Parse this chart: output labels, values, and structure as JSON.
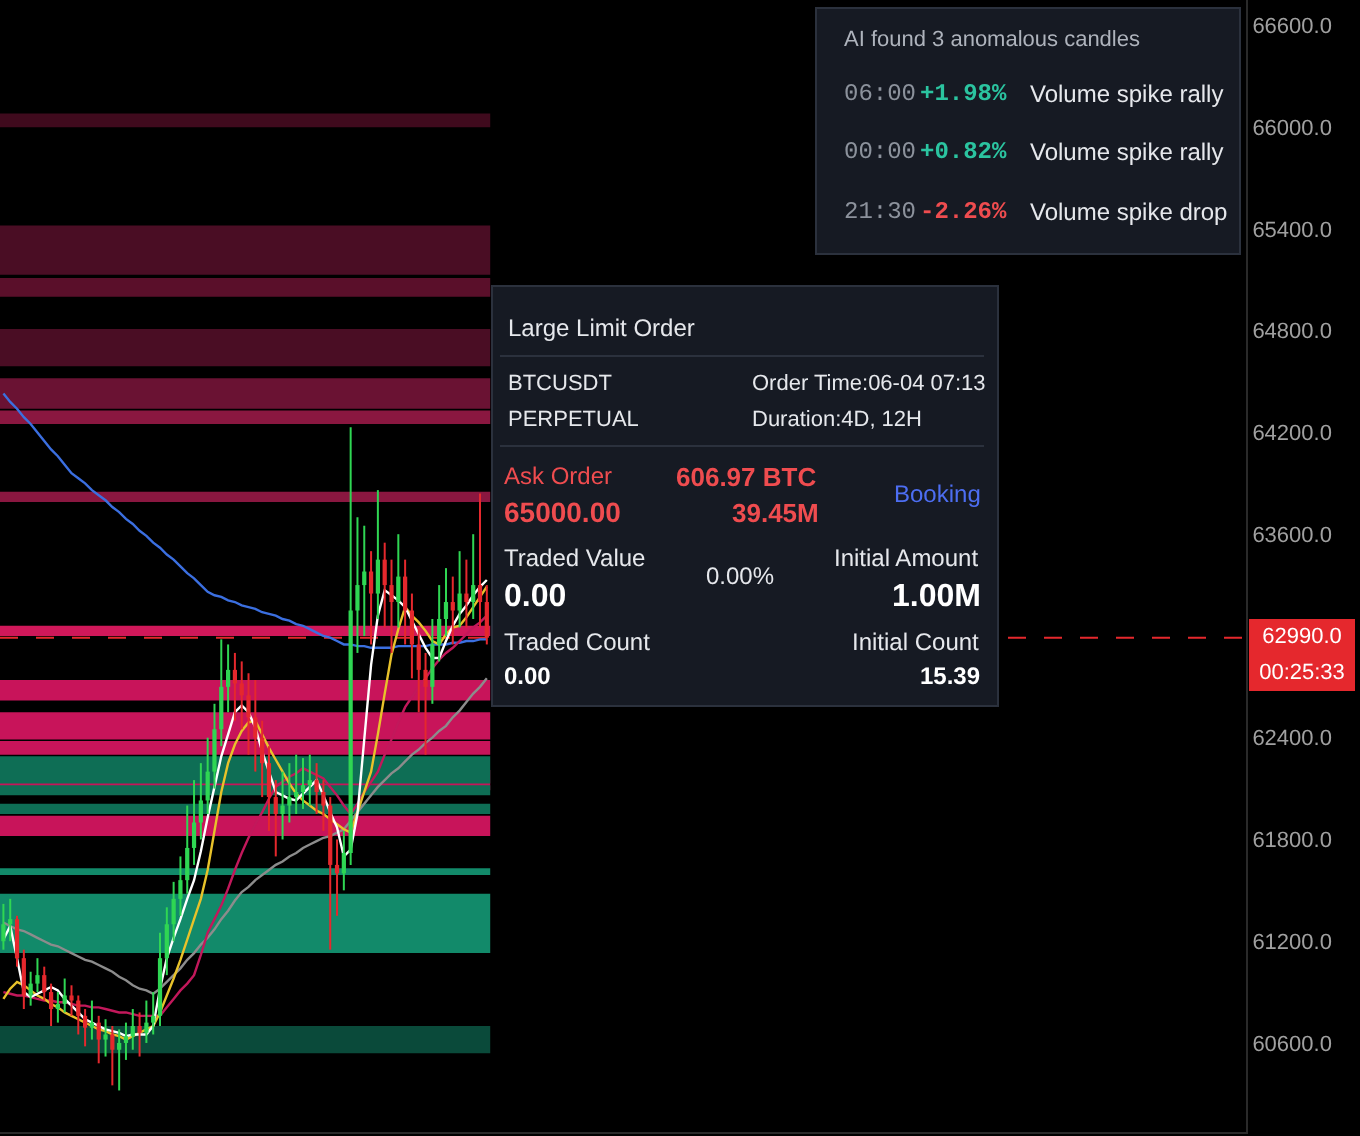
{
  "chart_data": {
    "type": "candlestick",
    "categories": [
      null,
      null,
      null,
      null,
      null,
      null,
      null,
      null,
      null,
      null,
      null,
      null,
      null,
      null,
      null,
      null,
      null,
      null,
      null,
      null,
      null,
      null,
      null,
      null,
      null,
      null,
      null,
      null,
      null,
      null,
      null,
      null,
      null,
      null,
      null,
      null,
      null,
      null,
      null,
      null,
      null,
      null,
      null,
      null,
      null,
      null,
      null,
      null,
      null,
      null,
      null,
      null,
      null,
      null,
      null,
      null,
      null,
      null,
      null,
      null,
      null,
      null,
      null,
      null,
      null,
      null,
      null,
      null,
      null,
      null,
      null,
      null,
      null,
      null,
      null,
      null,
      null,
      null,
      null,
      null,
      null,
      null,
      null,
      null,
      null,
      null,
      null,
      null,
      null,
      null,
      null,
      null,
      null,
      null,
      null,
      null,
      null,
      null,
      null,
      null,
      null,
      null,
      null,
      null,
      null,
      null,
      null,
      null,
      null,
      null,
      null,
      null,
      null,
      null,
      null,
      null,
      null,
      null,
      null,
      null,
      null,
      null,
      null,
      null,
      null,
      null,
      null,
      null,
      null,
      null,
      null,
      null,
      null,
      null,
      null,
      null,
      null,
      null,
      null,
      null,
      null,
      null,
      null,
      null,
      null,
      null,
      null,
      null,
      null,
      null,
      null,
      null,
      null,
      null,
      null,
      null,
      null,
      null,
      null,
      null,
      null,
      null,
      null,
      null,
      null,
      null,
      null,
      null,
      null,
      null,
      null,
      null,
      null,
      null,
      null,
      null,
      null,
      null,
      null,
      null,
      null,
      null,
      null
    ],
    "ohlc": [
      [
        61200,
        61420,
        61150,
        61300
      ],
      [
        61300,
        61450,
        61200,
        61330
      ],
      [
        61330,
        61350,
        61050,
        61100
      ],
      [
        61100,
        61150,
        60800,
        60880
      ],
      [
        60880,
        61020,
        60820,
        60950
      ],
      [
        60950,
        61100,
        60900,
        61000
      ],
      [
        61000,
        61050,
        60850,
        60900
      ],
      [
        60900,
        60950,
        60700,
        60800
      ],
      [
        60800,
        60900,
        60720,
        60830
      ],
      [
        60830,
        60980,
        60780,
        60880
      ],
      [
        60880,
        60940,
        60760,
        60850
      ],
      [
        60850,
        60880,
        60650,
        60760
      ],
      [
        60760,
        60800,
        60580,
        60690
      ],
      [
        60690,
        60850,
        60620,
        60720
      ],
      [
        60720,
        60760,
        60480,
        60620
      ],
      [
        60620,
        60740,
        60520,
        60650
      ],
      [
        60650,
        60700,
        60350,
        60560
      ],
      [
        60560,
        60680,
        60320,
        60600
      ],
      [
        60600,
        60720,
        60500,
        60640
      ],
      [
        60640,
        60800,
        60560,
        60700
      ],
      [
        60700,
        60780,
        60520,
        60660
      ],
      [
        60660,
        60850,
        60600,
        60720
      ],
      [
        60720,
        60900,
        60650,
        60760
      ],
      [
        60760,
        61250,
        60700,
        61100
      ],
      [
        61100,
        61400,
        61000,
        61300
      ],
      [
        61300,
        61550,
        61200,
        61450
      ],
      [
        61450,
        61700,
        61350,
        61560
      ],
      [
        61560,
        62000,
        61480,
        61750
      ],
      [
        61750,
        62150,
        61650,
        61900
      ],
      [
        61900,
        62250,
        61800,
        62030
      ],
      [
        62030,
        62400,
        61950,
        62200
      ],
      [
        62200,
        62600,
        62100,
        62450
      ],
      [
        62450,
        62980,
        62350,
        62700
      ],
      [
        62700,
        62950,
        62550,
        62800
      ],
      [
        62800,
        62900,
        62500,
        62720
      ],
      [
        62720,
        62850,
        62450,
        62650
      ],
      [
        62650,
        62780,
        62300,
        62520
      ],
      [
        62520,
        62740,
        62200,
        62400
      ],
      [
        62400,
        62500,
        62050,
        62250
      ],
      [
        62250,
        62350,
        61850,
        62050
      ],
      [
        62050,
        62150,
        61700,
        61950
      ],
      [
        61950,
        62200,
        61800,
        62000
      ],
      [
        62000,
        62250,
        61900,
        62050
      ],
      [
        62050,
        62300,
        61950,
        62080
      ],
      [
        62080,
        62280,
        61980,
        62120
      ],
      [
        62120,
        62300,
        62000,
        62150
      ],
      [
        62150,
        62250,
        61950,
        62080
      ],
      [
        62080,
        62150,
        61850,
        62000
      ],
      [
        62000,
        62050,
        61150,
        61650
      ],
      [
        61650,
        61800,
        61350,
        61600
      ],
      [
        61600,
        61850,
        61500,
        61720
      ],
      [
        61720,
        64230,
        61650,
        63150
      ],
      [
        63150,
        63700,
        62900,
        63300
      ],
      [
        63300,
        63650,
        63000,
        63380
      ],
      [
        63380,
        63500,
        62950,
        63250
      ],
      [
        63250,
        63860,
        63100,
        63450
      ],
      [
        63450,
        63550,
        63050,
        63300
      ],
      [
        63300,
        63450,
        62900,
        63200
      ],
      [
        63200,
        63600,
        63050,
        63350
      ],
      [
        63350,
        63450,
        62950,
        63150
      ],
      [
        63150,
        63250,
        62750,
        62950
      ],
      [
        62950,
        63050,
        62550,
        62800
      ],
      [
        62800,
        62900,
        62300,
        62700
      ],
      [
        62700,
        63100,
        62600,
        62950
      ],
      [
        62950,
        63300,
        62850,
        63100
      ],
      [
        63100,
        63400,
        63000,
        63200
      ],
      [
        63200,
        63350,
        62950,
        63150
      ],
      [
        63150,
        63500,
        63050,
        63250
      ],
      [
        63250,
        63450,
        63050,
        63200
      ],
      [
        63200,
        63600,
        63100,
        63300
      ],
      [
        63300,
        63840,
        63050,
        63200
      ],
      [
        63200,
        63300,
        62950,
        62990
      ],
      null,
      null,
      null,
      null,
      null,
      null,
      null,
      null,
      null,
      null,
      null,
      null,
      null,
      null,
      null,
      null,
      null,
      null,
      null,
      null,
      null,
      null,
      null,
      null,
      null,
      null,
      null,
      null,
      null,
      null,
      null,
      null,
      null,
      null,
      null,
      null,
      null,
      null,
      null,
      null,
      null,
      null,
      null,
      null,
      null,
      null,
      null,
      null,
      null,
      null,
      null,
      null,
      null,
      null,
      null,
      null,
      null,
      null,
      null,
      null,
      null,
      null,
      null,
      null,
      null,
      null,
      null,
      null,
      null,
      null,
      null,
      null,
      null,
      null,
      null,
      null,
      null,
      null,
      null,
      null,
      null,
      null,
      null,
      null,
      null,
      null,
      null,
      null,
      null,
      null,
      null,
      null,
      null,
      null,
      null,
      null,
      null,
      null,
      null,
      null,
      null,
      null,
      null,
      null,
      null,
      null,
      null,
      null,
      null,
      null,
      null
    ],
    "colors": [
      "#2fd653",
      "#2fd653",
      "#e5282d",
      "#e5282d",
      "#2fd653",
      "#2fd653",
      "#e5282d",
      "#e5282d",
      "#2fd653",
      "#2fd653",
      "#e5282d",
      "#e5282d",
      "#e5282d",
      "#2fd653",
      "#e5282d",
      "#2fd653",
      "#e5282d",
      "#2fd653",
      "#2fd653",
      "#2fd653",
      "#e5282d",
      "#2fd653",
      "#2fd653",
      "#2fd653",
      "#2fd653",
      "#2fd653",
      "#2fd653",
      "#2fd653",
      "#2fd653",
      "#2fd653",
      "#2fd653",
      "#2fd653",
      "#2fd653",
      "#2fd653",
      "#e5282d",
      "#e5282d",
      "#e5282d",
      "#e5282d",
      "#e5282d",
      "#e5282d",
      "#e5282d",
      "#2fd653",
      "#2fd653",
      "#2fd653",
      "#2fd653",
      "#2fd653",
      "#e5282d",
      "#e5282d",
      "#e5282d",
      "#e5282d",
      "#2fd653",
      "#2fd653",
      "#2fd653",
      "#2fd653",
      "#e5282d",
      "#2fd653",
      "#e5282d",
      "#e5282d",
      "#2fd653",
      "#e5282d",
      "#e5282d",
      "#e5282d",
      "#e5282d",
      "#2fd653",
      "#2fd653",
      "#2fd653",
      "#e5282d",
      "#2fd653",
      "#e5282d",
      "#2fd653",
      "#e5282d",
      "#e5282d",
      null,
      null,
      null,
      null,
      null,
      null,
      null,
      null,
      null,
      null,
      null,
      null,
      null,
      null,
      null,
      null,
      null,
      null,
      null,
      null,
      null,
      null,
      null,
      null,
      null,
      null,
      null,
      null,
      null,
      null,
      null,
      null,
      null,
      null,
      null,
      null,
      null,
      null,
      null,
      null,
      null,
      null,
      null,
      null,
      null,
      null,
      null,
      null,
      null,
      null,
      null,
      null,
      null,
      null,
      null,
      null,
      null,
      null,
      null,
      null,
      null,
      null,
      null,
      null,
      null,
      null,
      null,
      null,
      null,
      null,
      null,
      null,
      null,
      null,
      null,
      null,
      null,
      null,
      null,
      null,
      null,
      null,
      null,
      null,
      null,
      null,
      null,
      null,
      null,
      null,
      null,
      null,
      null,
      null,
      null,
      null,
      null,
      null,
      null,
      null,
      null,
      null,
      null,
      null,
      null,
      null,
      null,
      null,
      null,
      null,
      null
    ],
    "series": [
      {
        "type": "line",
        "color": "#3b6fe0",
        "values": [
          64430,
          64380,
          64340,
          64290,
          64250,
          64200,
          64150,
          64100,
          64060,
          64010,
          63960,
          63930,
          63900,
          63860,
          63830,
          63800,
          63760,
          63730,
          63690,
          63660,
          63620,
          63590,
          63550,
          63520,
          63480,
          63450,
          63410,
          63370,
          63340,
          63300,
          63260,
          63240,
          63230,
          63210,
          63200,
          63180,
          63170,
          63160,
          63140,
          63130,
          63120,
          63100,
          63090,
          63070,
          63060,
          63040,
          63020,
          63000,
          62990,
          62970,
          62950,
          62950,
          62940,
          62940,
          62930,
          62930,
          62930,
          62930,
          62940,
          62940,
          62940,
          62940,
          62940,
          62950,
          62950,
          62950,
          62960,
          62960,
          62970,
          62970,
          62980,
          62980,
          null,
          null,
          null,
          null,
          null,
          null,
          null,
          null,
          null,
          null,
          null,
          null,
          null,
          null,
          null,
          null,
          null,
          null,
          null,
          null,
          null,
          null,
          null,
          null,
          null,
          null,
          null,
          null,
          null,
          null,
          null,
          null,
          null,
          null,
          null,
          null,
          null,
          null,
          null,
          null,
          null,
          null,
          null,
          null,
          null,
          null,
          null,
          null,
          null,
          null,
          null,
          null,
          null,
          null,
          null,
          null,
          null,
          null,
          null,
          null,
          null,
          null,
          null,
          null,
          null,
          null,
          null,
          null,
          null,
          null,
          null,
          null,
          null,
          null,
          null,
          null,
          null,
          null,
          null,
          null,
          null,
          null,
          null,
          null,
          null,
          null,
          null,
          null,
          null,
          null,
          null,
          null,
          null,
          null,
          null,
          null,
          null,
          null,
          null,
          null,
          null,
          null,
          null,
          null,
          null,
          null,
          null,
          null,
          null,
          null,
          null
        ]
      },
      {
        "type": "line",
        "color": "#8c8c8c",
        "values": [
          61310,
          61290,
          61270,
          61260,
          61240,
          61220,
          61200,
          61180,
          61170,
          61150,
          61130,
          61110,
          61090,
          61080,
          61060,
          61040,
          61020,
          60990,
          60970,
          60940,
          60920,
          60910,
          60890,
          60920,
          60960,
          61000,
          61040,
          61090,
          61130,
          61180,
          61220,
          61270,
          61330,
          61380,
          61440,
          61490,
          61520,
          61560,
          61590,
          61620,
          61650,
          61670,
          61700,
          61720,
          61750,
          61770,
          61790,
          61810,
          61820,
          61840,
          61860,
          61910,
          61960,
          62010,
          62060,
          62110,
          62150,
          62190,
          62220,
          62260,
          62300,
          62330,
          62370,
          62400,
          62440,
          62470,
          62520,
          62560,
          62610,
          62660,
          62700,
          62750,
          null,
          null,
          null,
          null,
          null,
          null,
          null,
          null,
          null,
          null,
          null,
          null,
          null,
          null,
          null,
          null,
          null,
          null,
          null,
          null,
          null,
          null,
          null,
          null,
          null,
          null,
          null,
          null,
          null,
          null,
          null,
          null,
          null,
          null,
          null,
          null,
          null,
          null,
          null,
          null,
          null,
          null,
          null,
          null,
          null,
          null,
          null,
          null,
          null,
          null,
          null,
          null,
          null,
          null,
          null,
          null,
          null,
          null,
          null,
          null,
          null,
          null,
          null,
          null,
          null,
          null,
          null,
          null,
          null,
          null,
          null,
          null,
          null,
          null,
          null,
          null,
          null,
          null,
          null,
          null,
          null,
          null,
          null,
          null,
          null,
          null,
          null,
          null,
          null,
          null,
          null,
          null,
          null,
          null,
          null,
          null,
          null,
          null,
          null,
          null,
          null,
          null,
          null,
          null,
          null,
          null,
          null,
          null,
          null,
          null,
          null
        ]
      },
      {
        "type": "line",
        "color": "#c2185b",
        "values": [
          60900,
          60890,
          60880,
          60880,
          60870,
          60860,
          60850,
          60850,
          60840,
          60840,
          60830,
          60820,
          60820,
          60810,
          60810,
          60800,
          60790,
          60780,
          60780,
          60770,
          60760,
          60760,
          60760,
          60760,
          60810,
          60860,
          60910,
          60950,
          61000,
          61120,
          61250,
          61330,
          61410,
          61510,
          61620,
          61720,
          61810,
          61890,
          61960,
          62040,
          62110,
          62140,
          62170,
          62190,
          62220,
          62200,
          62180,
          62160,
          62110,
          62060,
          62000,
          61950,
          62010,
          62080,
          62140,
          62200,
          62300,
          62390,
          62490,
          62580,
          62640,
          62700,
          62750,
          62810,
          62860,
          62900,
          62930,
          62970,
          63010,
          63050,
          63080,
          63120,
          null,
          null,
          null,
          null,
          null,
          null,
          null,
          null,
          null,
          null,
          null,
          null,
          null,
          null,
          null,
          null,
          null,
          null,
          null,
          null,
          null,
          null,
          null,
          null,
          null,
          null,
          null,
          null,
          null,
          null,
          null,
          null,
          null,
          null,
          null,
          null,
          null,
          null,
          null,
          null,
          null,
          null,
          null,
          null,
          null,
          null,
          null,
          null,
          null,
          null,
          null,
          null,
          null,
          null,
          null,
          null,
          null,
          null,
          null,
          null,
          null,
          null,
          null,
          null,
          null,
          null,
          null,
          null,
          null,
          null,
          null,
          null,
          null,
          null,
          null,
          null,
          null,
          null,
          null,
          null,
          null,
          null,
          null,
          null,
          null,
          null,
          null,
          null,
          null,
          null,
          null,
          null,
          null,
          null,
          null,
          null,
          null,
          null,
          null,
          null,
          null,
          null,
          null,
          null,
          null,
          null,
          null,
          null,
          null,
          null,
          null
        ]
      },
      {
        "type": "line",
        "color": "#e8c22a",
        "values": [
          60860,
          60920,
          60960,
          60940,
          60910,
          60880,
          60860,
          60830,
          60810,
          60780,
          60760,
          60740,
          60720,
          60700,
          60680,
          60670,
          60650,
          60640,
          60620,
          60640,
          60660,
          60680,
          60700,
          60780,
          60880,
          60980,
          61090,
          61210,
          61330,
          61450,
          61620,
          61850,
          62080,
          62250,
          62360,
          62440,
          62490,
          62500,
          62420,
          62340,
          62270,
          62200,
          62130,
          62070,
          62030,
          62000,
          61970,
          61950,
          61920,
          61890,
          61860,
          61840,
          61960,
          62080,
          62200,
          62420,
          62660,
          62890,
          63040,
          63170,
          63120,
          63080,
          63030,
          62970,
          62950,
          63010,
          63050,
          63060,
          63110,
          63170,
          63230,
          63290,
          null,
          null,
          null,
          null,
          null,
          null,
          null,
          null,
          null,
          null,
          null,
          null,
          null,
          null,
          null,
          null,
          null,
          null,
          null,
          null,
          null,
          null,
          null,
          null,
          null,
          null,
          null,
          null,
          null,
          null,
          null,
          null,
          null,
          null,
          null,
          null,
          null,
          null,
          null,
          null,
          null,
          null,
          null,
          null,
          null,
          null,
          null,
          null,
          null,
          null,
          null,
          null,
          null,
          null,
          null,
          null,
          null,
          null,
          null,
          null,
          null,
          null,
          null,
          null,
          null,
          null,
          null,
          null,
          null,
          null,
          null,
          null,
          null,
          null,
          null,
          null,
          null,
          null,
          null,
          null,
          null,
          null,
          null,
          null,
          null,
          null,
          null,
          null,
          null,
          null,
          null,
          null,
          null,
          null,
          null,
          null,
          null,
          null,
          null,
          null,
          null,
          null,
          null,
          null,
          null,
          null,
          null,
          null,
          null,
          null,
          null
        ]
      },
      {
        "type": "line",
        "color": "#ffffff",
        "values": [
          61210,
          61290,
          61100,
          60900,
          60870,
          60890,
          60910,
          60930,
          60910,
          60860,
          60820,
          60780,
          60740,
          60720,
          60700,
          60680,
          60670,
          60660,
          60640,
          60650,
          60650,
          60650,
          60700,
          60920,
          61100,
          61220,
          61330,
          61450,
          61560,
          61730,
          61930,
          62110,
          62290,
          62420,
          62550,
          62590,
          62550,
          62460,
          62320,
          62200,
          62080,
          62060,
          62040,
          62030,
          62070,
          62110,
          62150,
          62060,
          61960,
          61870,
          61700,
          61740,
          61950,
          62390,
          62830,
          63120,
          63270,
          63240,
          63210,
          63170,
          63090,
          63010,
          62930,
          62870,
          62870,
          62970,
          63060,
          63130,
          63180,
          63240,
          63290,
          63330,
          null,
          null,
          null,
          null,
          null,
          null,
          null,
          null,
          null,
          null,
          null,
          null,
          null,
          null,
          null,
          null,
          null,
          null,
          null,
          null,
          null,
          null,
          null,
          null,
          null,
          null,
          null,
          null,
          null,
          null,
          null,
          null,
          null,
          null,
          null,
          null,
          null,
          null,
          null,
          null,
          null,
          null,
          null,
          null,
          null,
          null,
          null,
          null,
          null,
          null,
          null,
          null,
          null,
          null,
          null,
          null,
          null,
          null,
          null,
          null,
          null,
          null,
          null,
          null,
          null,
          null,
          null,
          null,
          null,
          null,
          null,
          null,
          null,
          null,
          null,
          null,
          null,
          null,
          null,
          null,
          null,
          null,
          null,
          null,
          null,
          null,
          null,
          null,
          null,
          null,
          null,
          null,
          null,
          null,
          null,
          null,
          null,
          null,
          null,
          null,
          null,
          null,
          null,
          null,
          null,
          null,
          null,
          null,
          null,
          null,
          null
        ]
      }
    ],
    "ylim": [
      60075,
      66750
    ],
    "yticks": [
      {
        "value": 60600,
        "label": "60600.0"
      },
      {
        "value": 61200,
        "label": "61200.0"
      },
      {
        "value": 61800,
        "label": "61800.0"
      },
      {
        "value": 62400,
        "label": "62400.0"
      },
      {
        "value": 63600,
        "label": "63600.0"
      },
      {
        "value": 64200,
        "label": "64200.0"
      },
      {
        "value": 64800,
        "label": "64800.0"
      },
      {
        "value": 65400,
        "label": "65400.0"
      },
      {
        "value": 66000,
        "label": "66000.0"
      },
      {
        "value": 66600,
        "label": "66600.0"
      }
    ],
    "tick_labels": "y",
    "bands": [
      {
        "axis": "y",
        "from": 66000,
        "to": 66080,
        "color": "#3f0a1d"
      },
      {
        "axis": "y",
        "from": 65130,
        "to": 65420,
        "color": "#4a0d24"
      },
      {
        "axis": "y",
        "from": 65000,
        "to": 65110,
        "color": "#5a0f2a"
      },
      {
        "axis": "y",
        "from": 64590,
        "to": 64810,
        "color": "#4a0d24"
      },
      {
        "axis": "y",
        "from": 64340,
        "to": 64520,
        "color": "#6a1233"
      },
      {
        "axis": "y",
        "from": 64250,
        "to": 64330,
        "color": "#8a1740"
      },
      {
        "axis": "y",
        "from": 63790,
        "to": 63850,
        "color": "#8a1740"
      },
      {
        "axis": "y",
        "from": 63000,
        "to": 63060,
        "color": "#d0185a"
      },
      {
        "axis": "y",
        "from": 62620,
        "to": 62740,
        "color": "#c8145a"
      },
      {
        "axis": "y",
        "from": 62390,
        "to": 62550,
        "color": "#c8145a"
      },
      {
        "axis": "y",
        "from": 62300,
        "to": 62380,
        "color": "#c8145a"
      },
      {
        "axis": "y",
        "from": 62090,
        "to": 62210,
        "color": "#c8145a"
      },
      {
        "axis": "y",
        "from": 61820,
        "to": 61940,
        "color": "#c8145a"
      },
      {
        "axis": "y",
        "from": 62130,
        "to": 62290,
        "color": "#0e6e55"
      },
      {
        "axis": "y",
        "from": 62060,
        "to": 62120,
        "color": "#0e6e55"
      },
      {
        "axis": "y",
        "from": 61950,
        "to": 62010,
        "color": "#0e6e55"
      },
      {
        "axis": "y",
        "from": 61590,
        "to": 61630,
        "color": "#128a6a"
      },
      {
        "axis": "y",
        "from": 61130,
        "to": 61480,
        "color": "#128a6a"
      },
      {
        "axis": "y",
        "from": 60540,
        "to": 60700,
        "color": "#0a4a3a"
      }
    ],
    "ref_lines": [
      {
        "axis": "y",
        "value": 62990,
        "label": "62990.0",
        "color": "#e5282d",
        "line_style": "dashed"
      }
    ],
    "annotations": [
      "AI found 3 anomalous candles",
      "06:00",
      "+1.98%",
      "Volume spike rally",
      "00:00",
      "+0.82%",
      "Volume spike rally",
      "21:30",
      "-2.26%",
      "Volume spike drop",
      "Large Limit Order",
      "BTCUSDT",
      "Order Time:06-04 07:13",
      "PERPETUAL",
      "Duration:4D, 12H",
      "Ask Order",
      "606.97 BTC",
      "Booking",
      "65000.00",
      "39.45M",
      "Traded Value",
      "0.00%",
      "Initial Amount",
      "0.00",
      "1.00M",
      "Traded Count",
      "Initial Count",
      "0.00",
      "15.39",
      "00:25:33"
    ]
  }
}
